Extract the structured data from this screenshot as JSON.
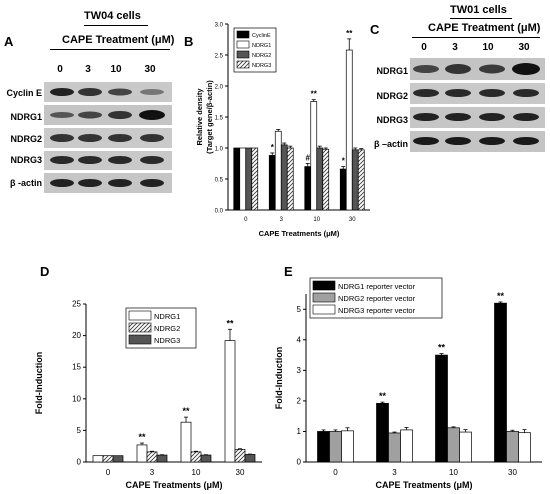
{
  "figure": {
    "panels": {
      "A": {
        "letter": "A",
        "cell_line": "TW04 cells",
        "treatment": "CAPE Treatment (μM)",
        "concentrations": [
          "0",
          "3",
          "10",
          "30"
        ],
        "bands": [
          "Cyclin E",
          "NDRG1",
          "NDRG2",
          "NDRG3",
          "β -actin"
        ]
      },
      "B": {
        "letter": "B"
      },
      "C": {
        "letter": "C",
        "cell_line": "TW01 cells",
        "treatment": "CAPE Treatment (μM)",
        "concentrations": [
          "0",
          "3",
          "10",
          "30"
        ],
        "bands": [
          "NDRG1",
          "NDRG2",
          "NDRG3",
          "β –actin"
        ]
      },
      "D": {
        "letter": "D"
      },
      "E": {
        "letter": "E"
      }
    }
  },
  "chart_data": [
    {
      "panel": "B",
      "type": "bar",
      "categories": [
        "0",
        "3",
        "10",
        "30"
      ],
      "xlabel": "CAPE Treatments (μM)",
      "ylabel": "Relative density",
      "ylabel2": "(Target gene/β-actin)",
      "ylim": [
        0,
        3.0
      ],
      "yticks": [
        "0.0",
        "0.5",
        "1.0",
        "1.5",
        "2.0",
        "2.5",
        "3.0"
      ],
      "legend_position": "top-left",
      "series": [
        {
          "name": "CyclinE",
          "values": [
            1.0,
            0.88,
            0.7,
            0.66
          ],
          "errors": [
            0.0,
            0.04,
            0.05,
            0.04
          ],
          "fill": "solid-black"
        },
        {
          "name": "NDRG1",
          "values": [
            1.0,
            1.27,
            1.75,
            2.58
          ],
          "errors": [
            0.0,
            0.03,
            0.03,
            0.18
          ],
          "fill": "white"
        },
        {
          "name": "NDRG2",
          "values": [
            1.0,
            1.05,
            1.0,
            0.97
          ],
          "errors": [
            0.0,
            0.03,
            0.03,
            0.03
          ],
          "fill": "dark-gray"
        },
        {
          "name": "NDRG3",
          "values": [
            1.0,
            1.0,
            0.98,
            0.97
          ],
          "errors": [
            0.0,
            0.03,
            0.02,
            0.02
          ],
          "fill": "hatched"
        }
      ],
      "annotations": [
        {
          "category": "3",
          "text": "*"
        },
        {
          "category": "10",
          "text": "#"
        },
        {
          "category": "10",
          "text": "**"
        },
        {
          "category": "30",
          "text": "*"
        },
        {
          "category": "30",
          "text": "**"
        }
      ]
    },
    {
      "panel": "D",
      "type": "bar",
      "categories": [
        "0",
        "3",
        "10",
        "30"
      ],
      "xlabel": "CAPE Treatments (μM)",
      "ylabel": "Fold-Induction",
      "ylim": [
        0,
        25
      ],
      "yticks": [
        "0",
        "5",
        "10",
        "15",
        "20",
        "25"
      ],
      "legend_position": "top-left",
      "series": [
        {
          "name": "NDRG1",
          "values": [
            1.0,
            2.7,
            6.3,
            19.2
          ],
          "errors": [
            0.0,
            0.3,
            0.8,
            1.8
          ],
          "fill": "white"
        },
        {
          "name": "NDRG2",
          "values": [
            1.0,
            1.6,
            1.6,
            2.0
          ],
          "errors": [
            0.0,
            0.1,
            0.1,
            0.1
          ],
          "fill": "hatched"
        },
        {
          "name": "NDRG3",
          "values": [
            1.0,
            1.1,
            1.1,
            1.2
          ],
          "errors": [
            0.0,
            0.05,
            0.05,
            0.05
          ],
          "fill": "dark-gray"
        }
      ],
      "annotations": [
        {
          "category": "3",
          "text": "**"
        },
        {
          "category": "10",
          "text": "**"
        },
        {
          "category": "30",
          "text": "**"
        }
      ]
    },
    {
      "panel": "E",
      "type": "bar",
      "categories": [
        "0",
        "3",
        "10",
        "30"
      ],
      "xlabel": "CAPE Treatments (μM)",
      "ylabel": "Fold-Induction",
      "ylim": [
        0,
        5.5
      ],
      "yticks": [
        "0",
        "1",
        "2",
        "3",
        "4",
        "5"
      ],
      "legend_position": "top-left",
      "series": [
        {
          "name": "NDRG1 reporter vector",
          "values": [
            1.0,
            1.92,
            3.5,
            5.2
          ],
          "errors": [
            0.05,
            0.04,
            0.05,
            0.04
          ],
          "fill": "solid-black"
        },
        {
          "name": "NDRG2 reporter vector",
          "values": [
            1.0,
            0.95,
            1.12,
            1.0
          ],
          "errors": [
            0.05,
            0.03,
            0.03,
            0.04
          ],
          "fill": "gray"
        },
        {
          "name": "NDRG3 reporter vector",
          "values": [
            1.02,
            1.05,
            0.98,
            0.96
          ],
          "errors": [
            0.1,
            0.08,
            0.08,
            0.1
          ],
          "fill": "white"
        }
      ],
      "annotations": [
        {
          "category": "3",
          "text": "**"
        },
        {
          "category": "10",
          "text": "**"
        },
        {
          "category": "30",
          "text": "**"
        }
      ]
    }
  ]
}
